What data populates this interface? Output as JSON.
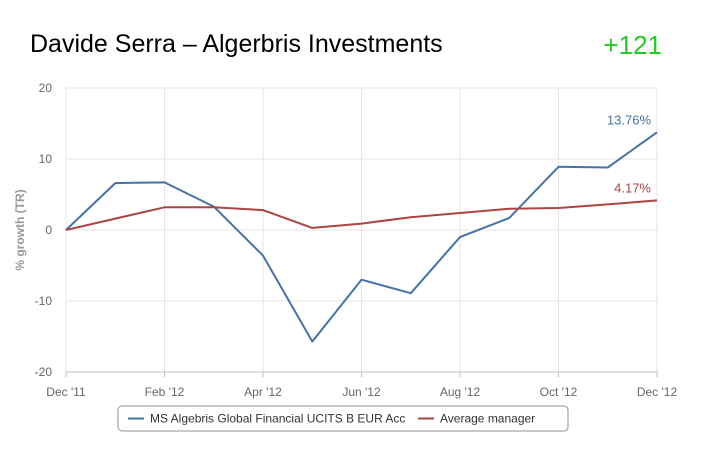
{
  "header": {
    "title": "Davide Serra – Algerbris Investments",
    "score": "+121"
  },
  "chart_data": {
    "type": "line",
    "ylabel": "% growth (TR)",
    "xlabel": "",
    "ylim": [
      -20,
      20
    ],
    "yticks": [
      20,
      10,
      0,
      -10,
      -20
    ],
    "xticks": [
      "Dec '11",
      "Feb '12",
      "Apr '12",
      "Jun '12",
      "Aug '12",
      "Oct '12",
      "Dec '12"
    ],
    "grid": true,
    "legend_position": "bottom",
    "x": [
      "Dec '11",
      "Jan '12",
      "Feb '12",
      "Mar '12",
      "Apr '12",
      "May '12",
      "Jun '12",
      "Jul '12",
      "Aug '12",
      "Sep '12",
      "Oct '12",
      "Nov '12",
      "Dec '12"
    ],
    "series": [
      {
        "name": "MS Algebris Global Financial UCITS B EUR Acc",
        "color": "#4572a7",
        "values": [
          0,
          6.6,
          6.7,
          3.3,
          -3.6,
          -15.7,
          -7.0,
          -8.9,
          -1.0,
          1.7,
          8.9,
          8.8,
          13.76
        ],
        "end_label": "13.76%"
      },
      {
        "name": "Average manager",
        "color": "#aa4643",
        "values": [
          0,
          1.6,
          3.2,
          3.2,
          2.8,
          0.3,
          0.9,
          1.8,
          2.4,
          3.0,
          3.1,
          3.6,
          4.17
        ],
        "end_label": "4.17%"
      }
    ]
  }
}
